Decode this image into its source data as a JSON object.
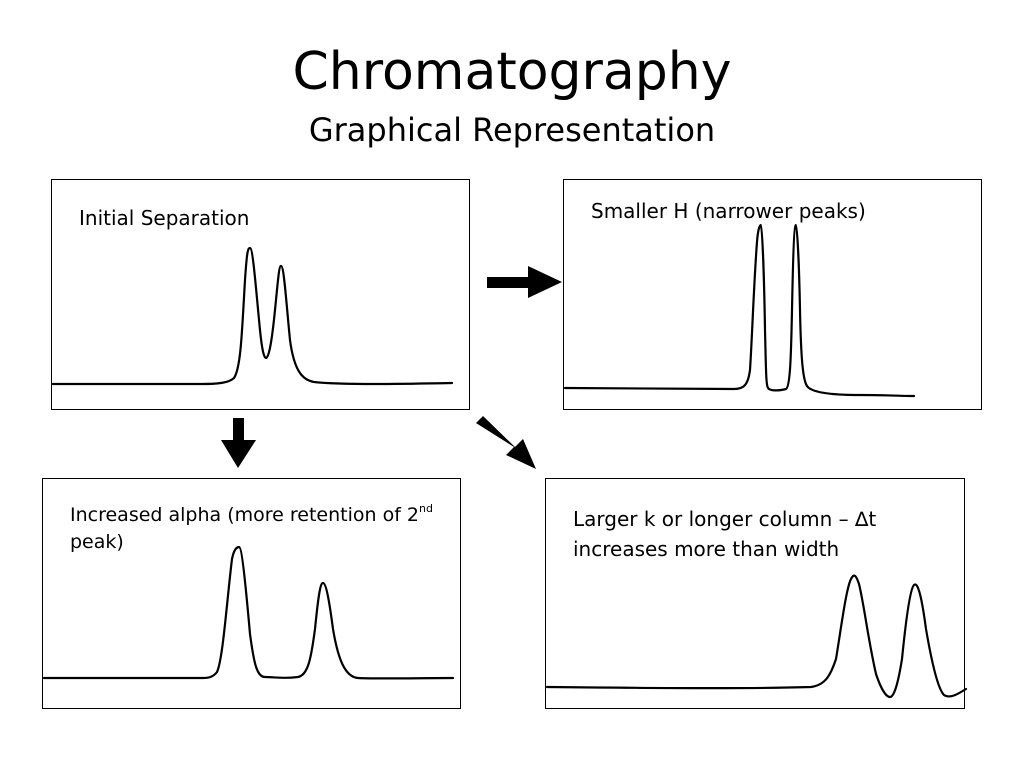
{
  "header": {
    "title": "Chromatography",
    "subtitle": "Graphical Representation"
  },
  "panels": [
    {
      "label": "Initial Separation"
    },
    {
      "label": "Smaller H (narrower peaks)"
    },
    {
      "label_main": "Increased alpha (more retention of 2",
      "label_sup": "nd",
      "label_end": " peak)"
    },
    {
      "label_line1": "Larger k or longer column – ∆t",
      "label_line2": "increases more than width"
    }
  ]
}
